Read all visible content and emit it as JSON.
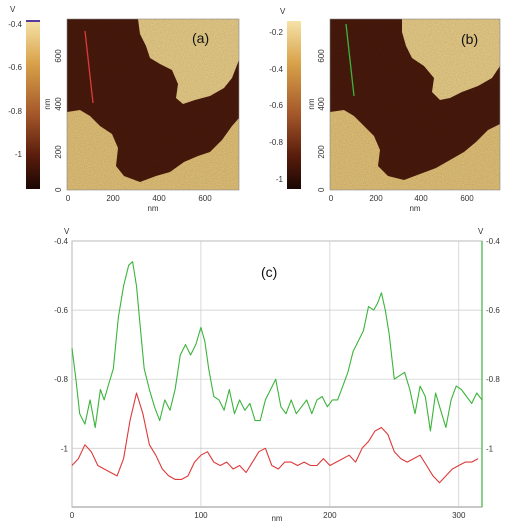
{
  "figure": {
    "panel_a_label": "(a)",
    "panel_b_label": "(b)",
    "panel_c_label": "(c)"
  },
  "colors": {
    "profile_a": "#dd3a3a",
    "profile_b": "#3cb43c",
    "afm_dark": "#4a1a0c",
    "afm_light": "#ecd08a"
  },
  "chart_data": [
    {
      "type": "heatmap",
      "panel": "(a)",
      "description_scale": "AFM height map",
      "colorbar": {
        "unit": "V",
        "ticks": [
          "-0.4",
          "-0.6",
          "-0.8",
          "-1"
        ],
        "range": [
          -1.15,
          -0.38
        ]
      },
      "ylabel": "nm",
      "xlabel": "nm",
      "xticks": [
        "0",
        "200",
        "400",
        "600"
      ],
      "yticks": [
        "0",
        "200",
        "400",
        "600"
      ],
      "xlim": [
        0,
        750
      ],
      "ylim": [
        0,
        750
      ]
    },
    {
      "type": "heatmap",
      "panel": "(b)",
      "colorbar": {
        "unit": "V",
        "ticks": [
          "-0.2",
          "-0.4",
          "-0.6",
          "-0.8",
          "-1"
        ],
        "range": [
          -1.1,
          -0.12
        ]
      },
      "ylabel": "nm",
      "xlabel": "nm",
      "xticks": [
        "0",
        "200",
        "400",
        "600"
      ],
      "yticks": [
        "0",
        "200",
        "400",
        "600"
      ],
      "xlim": [
        0,
        750
      ],
      "ylim": [
        0,
        750
      ]
    },
    {
      "type": "line",
      "panel": "(c)",
      "xlabel": "nm",
      "ylabel_left": "V",
      "ylabel_right": "V",
      "xlim": [
        0,
        318
      ],
      "ylim": [
        -1.17,
        -0.4
      ],
      "xticks": [
        "0",
        "100",
        "200",
        "300"
      ],
      "yticks": [
        "-0.4",
        "-0.6",
        "-0.8",
        "-1"
      ],
      "grid": true,
      "series": [
        {
          "color": "#3cb43c",
          "x": [
            0,
            3,
            6,
            10,
            14,
            18,
            22,
            25,
            28,
            32,
            36,
            40,
            44,
            47,
            50,
            53,
            56,
            60,
            64,
            68,
            72,
            76,
            80,
            84,
            88,
            92,
            96,
            100,
            103,
            106,
            110,
            114,
            118,
            122,
            126,
            130,
            134,
            138,
            142,
            146,
            150,
            154,
            158,
            162,
            166,
            170,
            174,
            178,
            182,
            186,
            190,
            194,
            198,
            202,
            206,
            210,
            214,
            218,
            222,
            226,
            230,
            234,
            237,
            240,
            243,
            246,
            250,
            254,
            258,
            262,
            266,
            270,
            274,
            278,
            282,
            286,
            290,
            294,
            298,
            302,
            306,
            310,
            314,
            318
          ],
          "values": [
            -0.71,
            -0.8,
            -0.9,
            -0.93,
            -0.86,
            -0.94,
            -0.83,
            -0.86,
            -0.82,
            -0.77,
            -0.62,
            -0.53,
            -0.47,
            -0.46,
            -0.53,
            -0.65,
            -0.77,
            -0.83,
            -0.88,
            -0.92,
            -0.86,
            -0.89,
            -0.83,
            -0.73,
            -0.7,
            -0.73,
            -0.7,
            -0.65,
            -0.69,
            -0.77,
            -0.85,
            -0.86,
            -0.89,
            -0.83,
            -0.9,
            -0.86,
            -0.89,
            -0.87,
            -0.92,
            -0.92,
            -0.86,
            -0.83,
            -0.8,
            -0.88,
            -0.9,
            -0.86,
            -0.9,
            -0.88,
            -0.86,
            -0.9,
            -0.86,
            -0.85,
            -0.88,
            -0.86,
            -0.86,
            -0.82,
            -0.78,
            -0.72,
            -0.69,
            -0.66,
            -0.59,
            -0.6,
            -0.58,
            -0.55,
            -0.6,
            -0.67,
            -0.8,
            -0.79,
            -0.78,
            -0.83,
            -0.9,
            -0.82,
            -0.85,
            -0.95,
            -0.84,
            -0.89,
            -0.94,
            -0.86,
            -0.82,
            -0.83,
            -0.85,
            -0.87,
            -0.84,
            -0.86
          ]
        },
        {
          "color": "#dd3a3a",
          "x": [
            0,
            5,
            10,
            15,
            20,
            25,
            30,
            35,
            40,
            45,
            50,
            55,
            60,
            65,
            70,
            75,
            80,
            85,
            90,
            95,
            100,
            105,
            110,
            115,
            120,
            125,
            130,
            135,
            140,
            145,
            150,
            155,
            160,
            165,
            170,
            175,
            180,
            185,
            190,
            195,
            200,
            205,
            210,
            215,
            220,
            225,
            230,
            235,
            240,
            245,
            250,
            255,
            260,
            265,
            270,
            275,
            280,
            285,
            290,
            295,
            300,
            305,
            310,
            315
          ],
          "values": [
            -1.05,
            -1.03,
            -0.99,
            -1.01,
            -1.05,
            -1.06,
            -1.07,
            -1.08,
            -1.03,
            -0.92,
            -0.84,
            -0.9,
            -0.99,
            -1.02,
            -1.06,
            -1.08,
            -1.09,
            -1.09,
            -1.08,
            -1.04,
            -1.02,
            -1.01,
            -1.04,
            -1.05,
            -1.04,
            -1.06,
            -1.05,
            -1.07,
            -1.04,
            -1.01,
            -1.0,
            -1.05,
            -1.06,
            -1.04,
            -1.04,
            -1.05,
            -1.04,
            -1.05,
            -1.05,
            -1.03,
            -1.05,
            -1.04,
            -1.03,
            -1.02,
            -1.04,
            -1.0,
            -0.98,
            -0.95,
            -0.94,
            -0.96,
            -1.01,
            -1.03,
            -1.04,
            -1.03,
            -1.02,
            -1.05,
            -1.08,
            -1.1,
            -1.08,
            -1.06,
            -1.05,
            -1.04,
            -1.04,
            -1.03
          ]
        }
      ]
    }
  ]
}
